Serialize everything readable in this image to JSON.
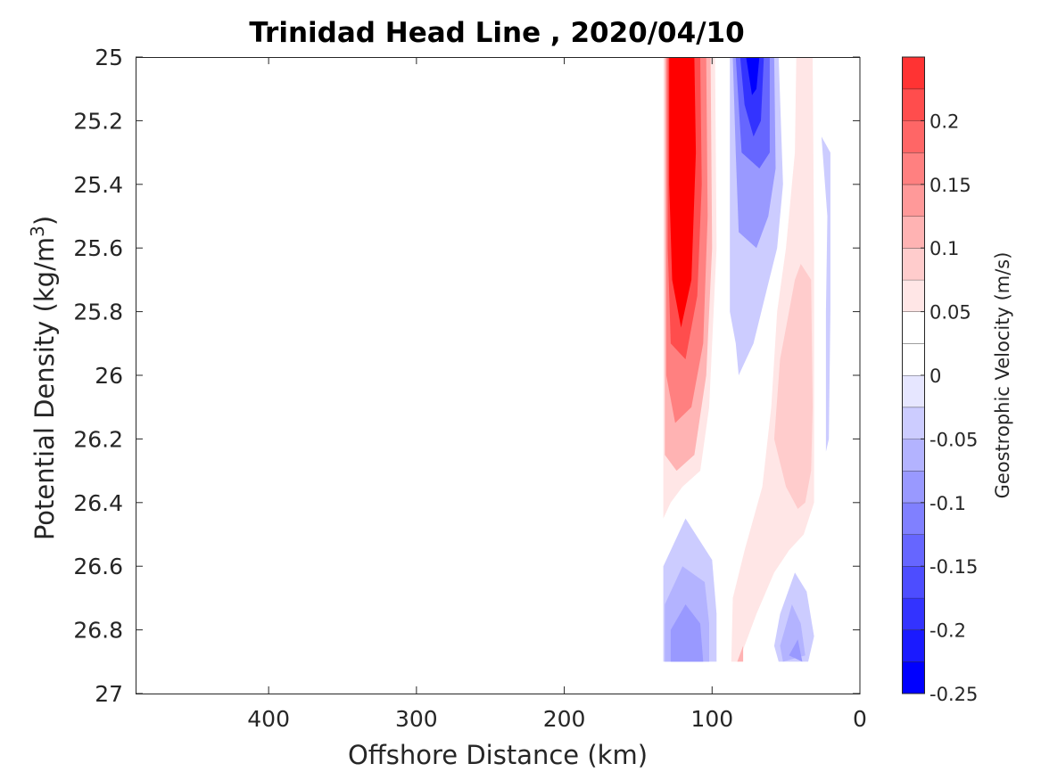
{
  "chart_data": {
    "type": "filled_contour",
    "title": "Trinidad Head Line , 2020/04/10",
    "xlabel": "Offshore Distance (km)",
    "ylabel_main": "Potential Density (kg/m",
    "ylabel_sup": "3",
    "ylabel_close": ")",
    "x_reversed": true,
    "y_reversed": true,
    "xlim": [
      490,
      0
    ],
    "ylim": [
      25,
      27
    ],
    "x_ticks": [
      400,
      300,
      200,
      100,
      0
    ],
    "x_tick_labels": [
      "400",
      "300",
      "200",
      "100",
      "0"
    ],
    "y_ticks": [
      25,
      25.2,
      25.4,
      25.6,
      25.8,
      26,
      26.2,
      26.4,
      26.6,
      26.8,
      27
    ],
    "y_tick_labels": [
      "25",
      "25.2",
      "25.4",
      "25.6",
      "25.8",
      "26",
      "26.2",
      "26.4",
      "26.6",
      "26.8",
      "27"
    ],
    "colorbar": {
      "label": "Geostrophic Velocity (m/s)",
      "range": [
        -0.25,
        0.25
      ],
      "levels": [
        -0.25,
        -0.225,
        -0.2,
        -0.175,
        -0.15,
        -0.125,
        -0.1,
        -0.075,
        -0.05,
        -0.025,
        0,
        0.025,
        0.05,
        0.075,
        0.1,
        0.125,
        0.15,
        0.175,
        0.2,
        0.225,
        0.25
      ],
      "colors": [
        "#0000ff",
        "#1a1aff",
        "#3333ff",
        "#4d4dff",
        "#6666ff",
        "#8080ff",
        "#9999ff",
        "#b3b3ff",
        "#ccccff",
        "#e6e6ff",
        "#ffffff",
        "#ffffff",
        "#ffe6e6",
        "#ffcccc",
        "#ffb3b3",
        "#ff9999",
        "#ff8080",
        "#ff6666",
        "#ff4d4d",
        "#ff3333",
        "#ff0000"
      ],
      "tick_values": [
        0.2,
        0.15,
        0.1,
        0.05,
        0,
        -0.05,
        -0.1,
        -0.15,
        -0.2,
        -0.25
      ],
      "tick_labels": [
        "0.2",
        "0.15",
        "0.1",
        "0.05",
        "0",
        "-0.05",
        "-0.1",
        "-0.15",
        "-0.2",
        "-0.25"
      ]
    },
    "regions": [
      {
        "name": "near-shore red core",
        "v": 0.05,
        "poly": [
          [
            133,
            25
          ],
          [
            98,
            25
          ],
          [
            97,
            25.6
          ],
          [
            102,
            26.1
          ],
          [
            108,
            26.3
          ],
          [
            120,
            26.35
          ],
          [
            128,
            26.4
          ],
          [
            133,
            26.45
          ]
        ]
      },
      {
        "name": "near-shore red core",
        "v": 0.1,
        "poly": [
          [
            132,
            25
          ],
          [
            101,
            25
          ],
          [
            100,
            25.6
          ],
          [
            104,
            26.0
          ],
          [
            112,
            26.25
          ],
          [
            124,
            26.3
          ],
          [
            132,
            26.25
          ]
        ]
      },
      {
        "name": "near-shore red core",
        "v": 0.15,
        "poly": [
          [
            131,
            25
          ],
          [
            104,
            25
          ],
          [
            103,
            25.5
          ],
          [
            106,
            25.9
          ],
          [
            114,
            26.1
          ],
          [
            125,
            26.15
          ],
          [
            131,
            26.0
          ]
        ]
      },
      {
        "name": "near-shore red core",
        "v": 0.2,
        "poly": [
          [
            130,
            25
          ],
          [
            108,
            25
          ],
          [
            107,
            25.4
          ],
          [
            110,
            25.75
          ],
          [
            118,
            25.95
          ],
          [
            128,
            25.9
          ],
          [
            130,
            25.6
          ]
        ]
      },
      {
        "name": "near-shore red core",
        "v": 0.25,
        "poly": [
          [
            129,
            25
          ],
          [
            112,
            25
          ],
          [
            111,
            25.3
          ],
          [
            114,
            25.7
          ],
          [
            121,
            25.85
          ],
          [
            127,
            25.7
          ],
          [
            129,
            25.4
          ]
        ]
      },
      {
        "name": "offshore blue jet",
        "v": -0.05,
        "poly": [
          [
            88,
            25
          ],
          [
            55,
            25
          ],
          [
            52,
            25.4
          ],
          [
            56,
            25.6
          ],
          [
            64,
            25.75
          ],
          [
            72,
            25.9
          ],
          [
            82,
            26.0
          ],
          [
            84,
            25.9
          ],
          [
            88,
            25.8
          ]
        ]
      },
      {
        "name": "offshore blue jet",
        "v": -0.1,
        "poly": [
          [
            86,
            25
          ],
          [
            58,
            25
          ],
          [
            57,
            25.35
          ],
          [
            62,
            25.5
          ],
          [
            70,
            25.6
          ],
          [
            82,
            25.55
          ],
          [
            84,
            25.3
          ]
        ]
      },
      {
        "name": "offshore blue jet",
        "v": -0.15,
        "poly": [
          [
            84,
            25
          ],
          [
            61,
            25
          ],
          [
            61,
            25.3
          ],
          [
            68,
            25.35
          ],
          [
            80,
            25.3
          ],
          [
            82,
            25.15
          ]
        ]
      },
      {
        "name": "offshore blue jet",
        "v": -0.2,
        "poly": [
          [
            81,
            25
          ],
          [
            65,
            25
          ],
          [
            67,
            25.2
          ],
          [
            72,
            25.25
          ],
          [
            78,
            25.15
          ]
        ]
      },
      {
        "name": "offshore blue jet",
        "v": -0.25,
        "poly": [
          [
            77,
            25
          ],
          [
            68,
            25
          ],
          [
            70,
            25.1
          ],
          [
            73,
            25.12
          ]
        ]
      },
      {
        "name": "mid pink band",
        "v": 0.05,
        "poly": [
          [
            43,
            25
          ],
          [
            32,
            25
          ],
          [
            31,
            25.6
          ],
          [
            31,
            26.2
          ],
          [
            31,
            26.4
          ],
          [
            38,
            26.5
          ],
          [
            48,
            26.55
          ],
          [
            58,
            26.62
          ],
          [
            70,
            26.75
          ],
          [
            82,
            26.9
          ],
          [
            87,
            26.9
          ],
          [
            86,
            26.7
          ],
          [
            78,
            26.55
          ],
          [
            66,
            26.35
          ],
          [
            60,
            26.1
          ],
          [
            56,
            25.8
          ],
          [
            50,
            25.6
          ],
          [
            44,
            25.3
          ]
        ]
      },
      {
        "name": "mid pink band",
        "v": 0.075,
        "poly": [
          [
            40,
            25.65
          ],
          [
            33,
            25.7
          ],
          [
            32,
            26.1
          ],
          [
            33,
            26.3
          ],
          [
            37,
            26.4
          ],
          [
            42,
            26.42
          ],
          [
            50,
            26.35
          ],
          [
            58,
            26.2
          ],
          [
            54,
            25.95
          ],
          [
            48,
            25.8
          ],
          [
            44,
            25.7
          ]
        ]
      },
      {
        "name": "mid pink band",
        "v": 0.1,
        "poly": [
          [
            79,
            26.85
          ],
          [
            83,
            26.9
          ],
          [
            79,
            26.9
          ]
        ]
      },
      {
        "name": "deep blue patch near shore",
        "v": -0.05,
        "poly": [
          [
            133,
            26.6
          ],
          [
            118,
            26.45
          ],
          [
            100,
            26.58
          ],
          [
            97,
            26.75
          ],
          [
            97,
            26.9
          ],
          [
            133,
            26.9
          ]
        ]
      },
      {
        "name": "deep blue patch near shore",
        "v": -0.075,
        "poly": [
          [
            132,
            26.72
          ],
          [
            120,
            26.6
          ],
          [
            105,
            26.65
          ],
          [
            102,
            26.78
          ],
          [
            102,
            26.9
          ],
          [
            132,
            26.9
          ]
        ]
      },
      {
        "name": "deep blue patch near shore",
        "v": -0.1,
        "poly": [
          [
            128,
            26.8
          ],
          [
            118,
            26.72
          ],
          [
            108,
            26.78
          ],
          [
            106,
            26.9
          ],
          [
            128,
            26.9
          ]
        ]
      },
      {
        "name": "deep blue patch offshore",
        "v": -0.05,
        "poly": [
          [
            58,
            26.85
          ],
          [
            54,
            26.75
          ],
          [
            44,
            26.62
          ],
          [
            36,
            26.68
          ],
          [
            31,
            26.82
          ],
          [
            35,
            26.9
          ],
          [
            55,
            26.9
          ]
        ]
      },
      {
        "name": "deep blue patch offshore",
        "v": -0.075,
        "poly": [
          [
            54,
            26.85
          ],
          [
            46,
            26.72
          ],
          [
            40,
            26.78
          ],
          [
            37,
            26.88
          ],
          [
            52,
            26.9
          ]
        ]
      },
      {
        "name": "deep blue patch offshore",
        "v": -0.1,
        "poly": [
          [
            48,
            26.88
          ],
          [
            42,
            26.83
          ],
          [
            39,
            26.9
          ]
        ]
      },
      {
        "name": "coastal blue sliver",
        "v": -0.05,
        "poly": [
          [
            26,
            25.25
          ],
          [
            20,
            25.3
          ],
          [
            20,
            25.8
          ],
          [
            21,
            26.2
          ],
          [
            23,
            26.24
          ],
          [
            23,
            25.8
          ],
          [
            22,
            25.5
          ]
        ]
      }
    ]
  }
}
